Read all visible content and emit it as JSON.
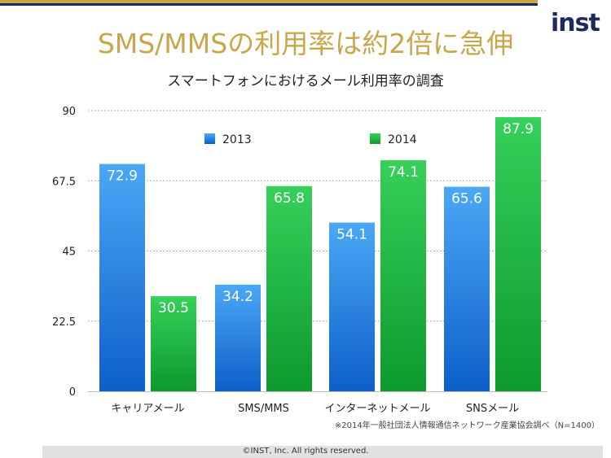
{
  "slide": {
    "title": "SMS/MMSの利用率は約2倍に急伸",
    "subtitle": "スマートフォンにおけるメール利用率の調査",
    "logo_text": "inst",
    "source": "※2014年一般社団法人情報通信ネットワーク産業協会調べ（N=1400）",
    "copyright": "©INST, Inc. All rights reserved."
  },
  "colors": {
    "title": "#c8a64a",
    "navy": "#1f2a5c",
    "series_2013": "#1f7fe0",
    "series_2014": "#18b23a"
  },
  "chart_data": {
    "type": "bar",
    "title": "スマートフォンにおけるメール利用率の調査",
    "categories": [
      "キャリアメール",
      "SMS/MMS",
      "インターネットメール",
      "SNSメール"
    ],
    "series": [
      {
        "name": "2013",
        "values": [
          72.9,
          34.2,
          54.1,
          65.6
        ]
      },
      {
        "name": "2014",
        "values": [
          30.5,
          65.8,
          74.1,
          87.9
        ]
      }
    ],
    "ylim": [
      0,
      90
    ],
    "yticks": [
      "0",
      "22.5",
      "45",
      "67.5",
      "90"
    ],
    "grid": true,
    "legend": "top-center",
    "data_labels": true
  }
}
